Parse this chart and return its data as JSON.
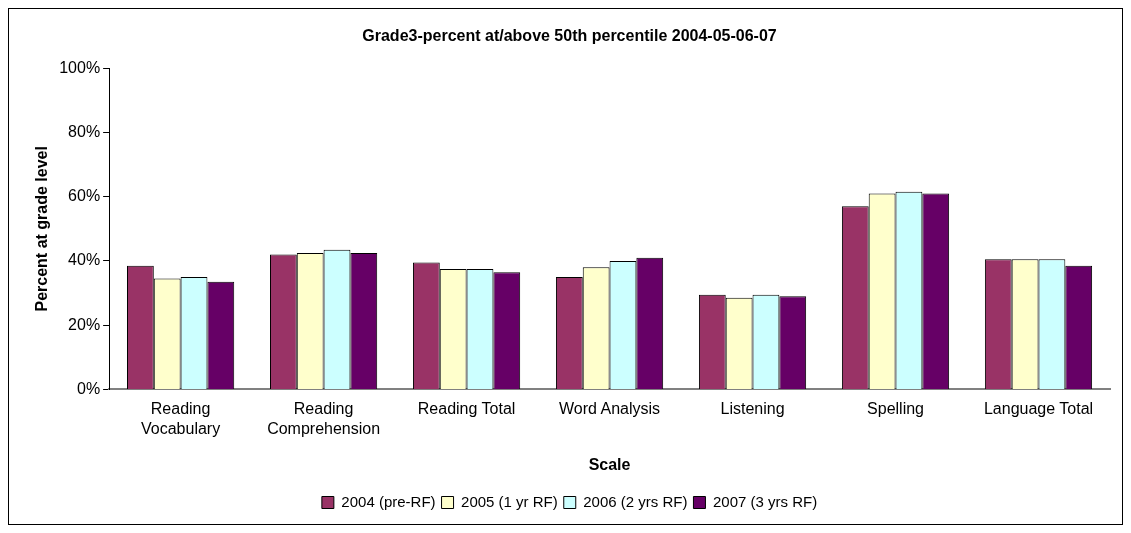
{
  "chart_data": {
    "type": "bar",
    "title": "Grade3-percent at/above 50th percentile 2004-05-06-07",
    "xlabel": "Scale",
    "ylabel": "Percent at grade level",
    "categories": [
      "Reading Vocabulary",
      "Reading Comprehension",
      "Reading Total",
      "Word Analysis",
      "Listening",
      "Spelling",
      "Language Total"
    ],
    "series": [
      {
        "name": "2004 (pre-RF)",
        "color": "#993366",
        "values": [
          38.5,
          42,
          39.5,
          35,
          29.5,
          57,
          40.5
        ]
      },
      {
        "name": "2005 (1 yr RF)",
        "color": "#ffffcc",
        "values": [
          34.5,
          42.5,
          37.5,
          38,
          28.5,
          61,
          40.5
        ]
      },
      {
        "name": "2006 (2 yrs RF)",
        "color": "#ccffff",
        "values": [
          35,
          43.5,
          37.5,
          40,
          29.5,
          61.5,
          40.5
        ]
      },
      {
        "name": "2007 (3 yrs RF)",
        "color": "#660066",
        "values": [
          33.5,
          42.5,
          36.5,
          41,
          29,
          61,
          38.5
        ]
      }
    ],
    "ylim": [
      0,
      100
    ],
    "yticks": [
      {
        "value": 0,
        "label": "0%"
      },
      {
        "value": 20,
        "label": "20%"
      },
      {
        "value": 40,
        "label": "40%"
      },
      {
        "value": 60,
        "label": "60%"
      },
      {
        "value": 80,
        "label": "80%"
      },
      {
        "value": 100,
        "label": "100%"
      }
    ],
    "grid": false,
    "legend": "bottom"
  }
}
